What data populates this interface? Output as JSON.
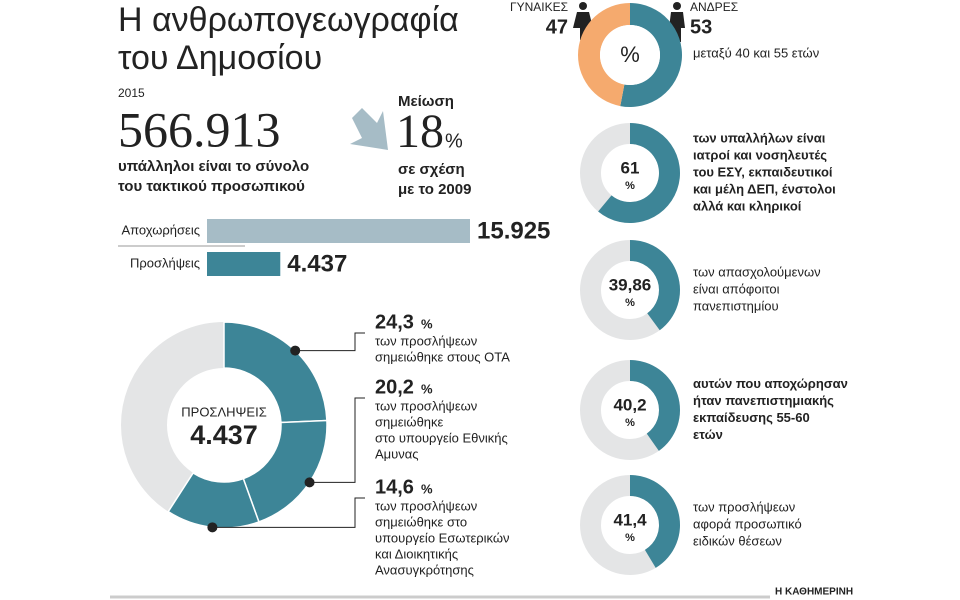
{
  "title": [
    "Η ανθρωπογεωγραφία",
    "του Δημοσίου"
  ],
  "year": "2015",
  "total": {
    "value": "566.913",
    "lines": [
      "υπάλληλοι είναι το σύνολο",
      "του τακτικού προσωπικού"
    ]
  },
  "decrease": {
    "label": "Μείωση",
    "value": "18",
    "unit": "%",
    "lines": [
      "σε σχέση",
      "με το 2009"
    ]
  },
  "source": "Η ΚΑΘΗΜΕΡΙΝΗ",
  "chart_data": [
    {
      "type": "bar",
      "orientation": "horizontal",
      "categories": [
        "Αποχωρήσεις",
        "Προσλήψεις"
      ],
      "values": [
        15925,
        4437
      ],
      "value_labels": [
        "15.925",
        "4.437"
      ],
      "colors": [
        "#a6bcc6",
        "#3d8597"
      ]
    },
    {
      "type": "donut",
      "center_label": "ΠΡΟΣΛΗΨΕΙΣ",
      "center_value": "4.437",
      "values": [
        24.3,
        20.2,
        14.6
      ],
      "value_labels": [
        "24,3",
        "20,2",
        "14,6"
      ],
      "unit": "%",
      "color": "#3d8597",
      "rest_color": "#e4e5e6",
      "descriptions": [
        [
          "των προσλήψεων",
          "σημειώθηκε στους ΟΤΑ"
        ],
        [
          "των προσλήψεων",
          "σημειώθηκε",
          "στο υπουργείο Εθνικής",
          "Αμυνας"
        ],
        [
          "των προσλήψεων",
          "σημειώθηκε στο",
          "υπουργείο Εσωτερικών",
          "και Διοικητικής",
          "Ανασυγκρότησης"
        ]
      ]
    },
    {
      "type": "donut",
      "categories": [
        "ΓΥΝΑΙΚΕΣ",
        "ΑΝΔΡΕΣ"
      ],
      "values": [
        47,
        53
      ],
      "colors": [
        "#f5aa6e",
        "#3d8597"
      ],
      "center_label": "%",
      "description": [
        "μεταξύ 40 και 55 ετών"
      ]
    },
    {
      "type": "donut",
      "values": [
        61
      ],
      "value_labels": [
        "61"
      ],
      "unit": "%",
      "color": "#3d8597",
      "rest_color": "#e4e5e6",
      "bold": true,
      "description": [
        "των υπαλλήλων είναι",
        "ιατροί και νοσηλευτές",
        "του ΕΣΥ, εκπαιδευτικοί",
        "και μέλη ΔΕΠ, ένστολοι",
        "αλλά και κληρικοί"
      ]
    },
    {
      "type": "donut",
      "values": [
        39.86
      ],
      "value_labels": [
        "39,86"
      ],
      "unit": "%",
      "color": "#3d8597",
      "rest_color": "#e4e5e6",
      "bold": false,
      "description": [
        "των απασχολούμενων",
        "είναι απόφοιτοι",
        "πανεπιστημίου"
      ]
    },
    {
      "type": "donut",
      "values": [
        40.2
      ],
      "value_labels": [
        "40,2"
      ],
      "unit": "%",
      "color": "#3d8597",
      "rest_color": "#e4e5e6",
      "bold": true,
      "description": [
        "αυτών που αποχώρησαν",
        "ήταν πανεπιστημιακής",
        "εκπαίδευσης 55-60",
        "ετών"
      ]
    },
    {
      "type": "donut",
      "values": [
        41.4
      ],
      "value_labels": [
        "41,4"
      ],
      "unit": "%",
      "color": "#3d8597",
      "rest_color": "#e4e5e6",
      "bold": false,
      "description": [
        "των προσλήψεων",
        "αφορά προσωπικό",
        "ειδικών θέσεων"
      ]
    }
  ]
}
